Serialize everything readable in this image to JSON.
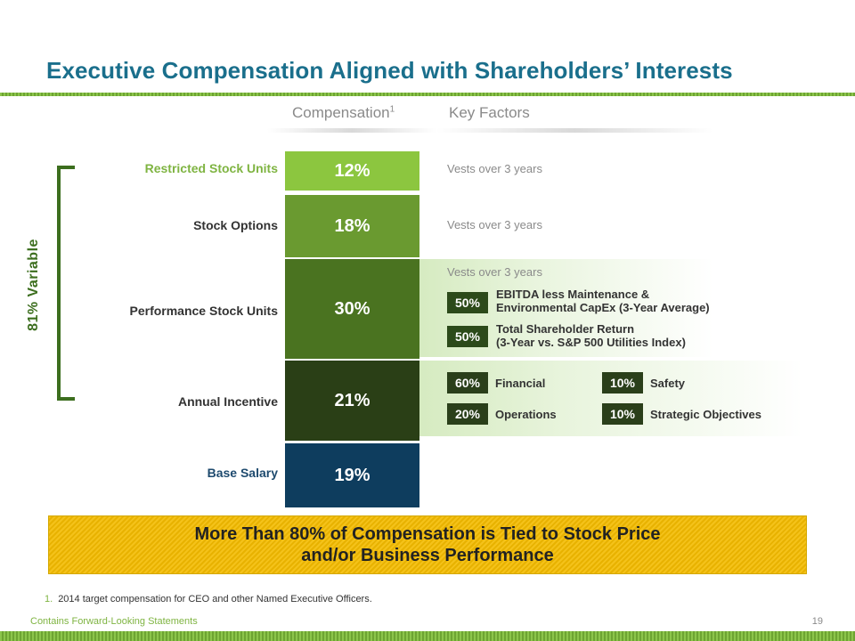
{
  "title": "Executive Compensation Aligned with Shareholders’ Interests",
  "headers": {
    "compensation": "Compensation",
    "compensation_note": "1",
    "key_factors": "Key Factors"
  },
  "variable_label": "81% Variable",
  "rows": [
    {
      "label": "Restricted Stock Units",
      "pct": "12%",
      "color": "#8cc63f"
    },
    {
      "label": "Stock Options",
      "pct": "18%",
      "color": "#6a9a30"
    },
    {
      "label": "Performance Stock Units",
      "pct": "30%",
      "color": "#4a7320"
    },
    {
      "label": "Annual Incentive",
      "pct": "21%",
      "color": "#2a3f16"
    },
    {
      "label": "Base Salary",
      "pct": "19%",
      "color": "#0e3d5e"
    }
  ],
  "factors": {
    "rsu_vest": "Vests over 3 years",
    "options_vest": "Vests over 3 years",
    "psu_vest": "Vests over 3 years",
    "psu_items": [
      {
        "pct": "50%",
        "line1": "EBITDA less Maintenance &",
        "line2": "Environmental CapEx (3-Year Average)"
      },
      {
        "pct": "50%",
        "line1": "Total Shareholder Return",
        "line2": "(3-Year vs. S&P 500 Utilities Index)"
      }
    ],
    "incentive_items": [
      {
        "pct": "60%",
        "label": "Financial"
      },
      {
        "pct": "20%",
        "label": "Operations"
      },
      {
        "pct": "10%",
        "label": "Safety"
      },
      {
        "pct": "10%",
        "label": "Strategic Objectives"
      }
    ]
  },
  "banner": {
    "line1": "More Than 80% of Compensation is Tied to Stock Price",
    "line2": "and/or Business Performance"
  },
  "footnote": {
    "num": "1.",
    "text": "2014 target compensation for CEO and other Named Executive Officers."
  },
  "footer": {
    "left": "Contains Forward-Looking Statements",
    "page": "19"
  }
}
